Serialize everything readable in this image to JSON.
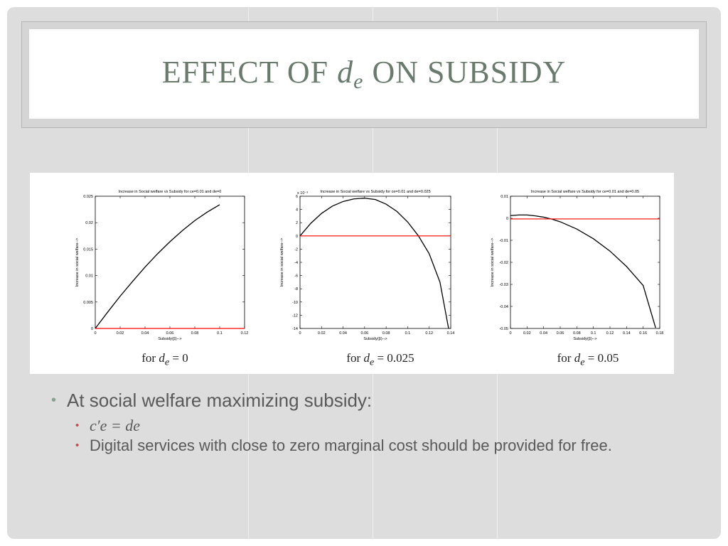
{
  "slide": {
    "title_prefix": "EFFECT OF",
    "title_var": "d",
    "title_var_sub": "e",
    "title_suffix": "ON SUBSIDY",
    "bullets": {
      "main": "At social welfare maximizing subsidy:",
      "sub1": "c′e = de",
      "sub2": "Digital services with close to zero marginal cost should be provided for free."
    }
  },
  "chart_data": [
    {
      "type": "line",
      "title": "Increase in Social welfare vs Subsidy for ce=0.01 and de=0",
      "xlabel": "Subsidy(β)-->",
      "ylabel": "Increase in social welfare-->",
      "caption": "for de = 0",
      "caption_value": "0",
      "xlim": [
        0,
        0.12
      ],
      "ylim": [
        0,
        0.025
      ],
      "xticks": [
        "0",
        "0.02",
        "0.04",
        "0.06",
        "0.08",
        "0.1",
        "0.12"
      ],
      "yticks": [
        "0",
        "0.005",
        "0.01",
        "0.015",
        "0.02",
        "0.025"
      ],
      "x": [
        0,
        0.01,
        0.02,
        0.03,
        0.04,
        0.05,
        0.06,
        0.07,
        0.08,
        0.09,
        0.1
      ],
      "series": [
        {
          "values": [
            0,
            0.0031,
            0.0061,
            0.0089,
            0.0116,
            0.0141,
            0.0164,
            0.0185,
            0.0204,
            0.022,
            0.0234
          ],
          "color": "#000000"
        },
        {
          "values": [
            0,
            0,
            0,
            0,
            0,
            0,
            0,
            0,
            0,
            0,
            0
          ],
          "color": "#ff0000",
          "span": [
            0,
            0.12
          ]
        }
      ]
    },
    {
      "type": "line",
      "title": "Increase in Social welfare vs Subsidy for ce=0.01 and de=0.025",
      "xlabel": "Subsidy(β)-->",
      "ylabel": "Increase in social welfare-->",
      "multiplier": "x 10⁻³",
      "caption": "for de = 0.025",
      "caption_value": "0.025",
      "xlim": [
        0,
        0.14
      ],
      "ylim": [
        -14,
        6
      ],
      "xticks": [
        "0",
        "0.02",
        "0.04",
        "0.06",
        "0.08",
        "0.1",
        "0.12",
        "0.14"
      ],
      "yticks": [
        "-14",
        "-12",
        "-10",
        "-8",
        "-6",
        "-4",
        "-2",
        "0",
        "2",
        "4",
        "6"
      ],
      "x": [
        0,
        0.01,
        0.02,
        0.03,
        0.04,
        0.05,
        0.06,
        0.07,
        0.08,
        0.09,
        0.1,
        0.11,
        0.12,
        0.13,
        0.138
      ],
      "series": [
        {
          "values": [
            0,
            1.9,
            3.4,
            4.5,
            5.2,
            5.6,
            5.7,
            5.5,
            4.8,
            3.7,
            2.1,
            0,
            -2.7,
            -7.0,
            -14
          ],
          "color": "#000000"
        },
        {
          "values": [
            0,
            0,
            0,
            0,
            0,
            0,
            0,
            0,
            0,
            0,
            0,
            0,
            0,
            0,
            0
          ],
          "color": "#ff0000",
          "span": [
            0,
            0.14
          ]
        }
      ]
    },
    {
      "type": "line",
      "title": "Increase in Social welfare vs Subsidy for ce=0.01 and de=0.05",
      "xlabel": "Subsidy(β)-->",
      "ylabel": "Increase in social welfare-->",
      "caption": "for de = 0.05",
      "caption_value": "0.05",
      "xlim": [
        0,
        0.18
      ],
      "ylim": [
        -0.05,
        0.01
      ],
      "xticks": [
        "0",
        "0.02",
        "0.04",
        "0.06",
        "0.08",
        "0.1",
        "0.12",
        "0.14",
        "0.16",
        "0.18"
      ],
      "yticks": [
        "-0.05",
        "-0.04",
        "-0.03",
        "-0.02",
        "-0.01",
        "0",
        "0.01"
      ],
      "x": [
        0,
        0.01,
        0.02,
        0.03,
        0.04,
        0.05,
        0.06,
        0.08,
        0.1,
        0.12,
        0.14,
        0.16,
        0.175
      ],
      "series": [
        {
          "values": [
            0.0012,
            0.0015,
            0.0015,
            0.0011,
            0.0005,
            -0.0004,
            -0.0016,
            -0.0049,
            -0.0093,
            -0.0149,
            -0.0219,
            -0.0305,
            -0.0497
          ],
          "color": "#000000"
        },
        {
          "values": [
            -0.0003,
            -0.0003,
            -0.0003,
            -0.0003,
            -0.0003,
            -0.0003,
            -0.0003,
            -0.0003,
            -0.0003,
            -0.0003,
            -0.0003,
            -0.0003,
            -0.0003
          ],
          "color": "#ff0000",
          "span": [
            0,
            0.18
          ]
        }
      ]
    }
  ]
}
